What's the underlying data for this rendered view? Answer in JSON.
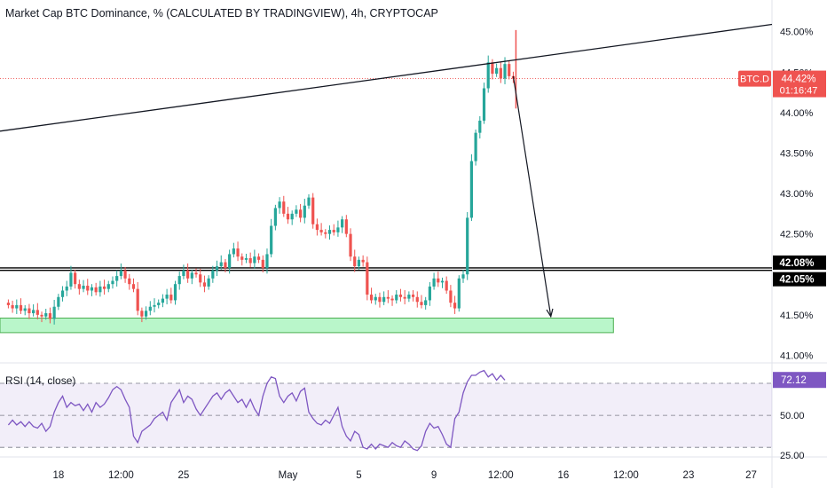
{
  "header": {
    "title": "Market Cap BTC Dominance, % (CALCULATED BY TRADINGVIEW), 4h, CRYPTOCAP",
    "rsi_title": "RSI (14, close)"
  },
  "colors": {
    "up": "#26a69a",
    "down": "#ef5350",
    "rsi_line": "#7e57c2",
    "rsi_band": "#7e57c2",
    "support_zone": "#b9f6ca",
    "support_zone_border": "#4caf50",
    "price_label": "#ef5350",
    "black_label": "#000000",
    "axis_text": "#131722"
  },
  "chart_data": [
    {
      "type": "candlestick",
      "title": "Market Cap BTC Dominance, % (CALCULATED BY TRADINGVIEW), 4h, CRYPTOCAP",
      "y_unit": "%",
      "ylim": [
        40.95,
        45.15
      ],
      "y_ticks": [
        "45.00%",
        "44.50%",
        "44.00%",
        "43.50%",
        "43.00%",
        "42.50%",
        "41.50%",
        "41.00%"
      ],
      "y_tick_values": [
        45.0,
        44.5,
        44.0,
        43.5,
        43.0,
        42.5,
        41.5,
        41.0
      ],
      "x_ticks": [
        "18",
        "12:00",
        "25",
        "May",
        "5",
        "9",
        "12:00",
        "16",
        "12:00",
        "23",
        "27"
      ],
      "x_tick_index": [
        12,
        27,
        42,
        67,
        84,
        102,
        118,
        133,
        148,
        163,
        178
      ],
      "x_index_range": [
        -2,
        183
      ],
      "current_price_label": "BTC.D",
      "current_price_value": "44.42%",
      "current_price_countdown": "01:16:47",
      "current_price": 44.42,
      "horizontal_lines": [
        {
          "value": 42.08,
          "label": "42.08%"
        },
        {
          "value": 42.05,
          "label": "42.05%"
        }
      ],
      "support_zone": {
        "from": 41.28,
        "to": 41.46,
        "index_from": -2,
        "index_to": 145
      },
      "trendline": {
        "index_from": -2,
        "value_from": 43.77,
        "index_to": 183,
        "value_to": 45.09
      },
      "projection_arrow": {
        "index_from": 121,
        "value_from": 44.45,
        "index_to": 130,
        "value_to": 41.48
      },
      "candles_close": [
        41.62,
        41.58,
        41.62,
        41.55,
        41.58,
        41.52,
        41.56,
        41.5,
        41.48,
        41.52,
        41.45,
        41.6,
        41.72,
        41.8,
        41.85,
        42.02,
        41.88,
        41.82,
        41.86,
        41.8,
        41.84,
        41.78,
        41.85,
        41.82,
        41.88,
        41.92,
        41.98,
        42.05,
        41.95,
        41.88,
        41.82,
        41.55,
        41.48,
        41.55,
        41.6,
        41.62,
        41.65,
        41.7,
        41.75,
        41.68,
        41.88,
        41.98,
        42.05,
        41.95,
        42.02,
        42.0,
        41.9,
        41.85,
        41.95,
        42.05,
        42.1,
        42.15,
        42.08,
        42.25,
        42.32,
        42.22,
        42.18,
        42.2,
        42.14,
        42.22,
        42.18,
        42.08,
        42.25,
        42.6,
        42.82,
        42.9,
        42.75,
        42.68,
        42.75,
        42.8,
        42.7,
        42.85,
        42.95,
        42.62,
        42.55,
        42.52,
        42.5,
        42.55,
        42.52,
        42.58,
        42.68,
        42.5,
        42.22,
        42.1,
        42.18,
        42.15,
        41.75,
        41.68,
        41.72,
        41.66,
        41.72,
        41.7,
        41.68,
        41.75,
        41.72,
        41.7,
        41.75,
        41.72,
        41.66,
        41.62,
        41.68,
        41.85,
        41.95,
        41.9,
        41.92,
        41.8,
        41.65,
        41.58,
        41.95,
        42.0,
        42.7,
        43.4,
        43.75,
        43.9,
        44.3,
        44.62,
        44.48,
        44.55,
        44.42,
        44.6,
        44.45,
        44.42
      ],
      "rsi": {
        "name": "RSI (14, close)",
        "ylim": [
          24,
          80
        ],
        "ticks": [
          "75.00",
          "50.00",
          "25.00"
        ],
        "tick_values": [
          75,
          50,
          25
        ],
        "band": [
          30,
          70
        ],
        "mid": 50,
        "current_label": "72.12",
        "current_value": 72.12,
        "values": [
          44,
          47,
          44,
          46,
          43,
          46,
          43,
          42,
          45,
          40,
          43,
          52,
          58,
          62,
          55,
          58,
          56,
          57,
          53,
          57,
          52,
          58,
          55,
          57,
          61,
          66,
          68,
          66,
          60,
          55,
          37,
          33,
          40,
          42,
          44,
          48,
          50,
          52,
          47,
          58,
          62,
          66,
          58,
          62,
          60,
          54,
          50,
          54,
          58,
          62,
          64,
          60,
          64,
          66,
          62,
          58,
          60,
          55,
          60,
          54,
          50,
          62,
          70,
          74,
          73,
          62,
          58,
          62,
          64,
          59,
          65,
          67,
          52,
          48,
          45,
          44,
          47,
          45,
          50,
          55,
          43,
          37,
          34,
          40,
          38,
          30,
          29,
          32,
          29,
          32,
          31,
          30,
          33,
          31,
          30,
          34,
          32,
          29,
          28,
          31,
          40,
          45,
          42,
          43,
          38,
          32,
          30,
          48,
          52,
          64,
          71,
          75,
          75,
          77,
          78,
          74,
          76,
          72,
          75,
          72
        ]
      }
    }
  ]
}
